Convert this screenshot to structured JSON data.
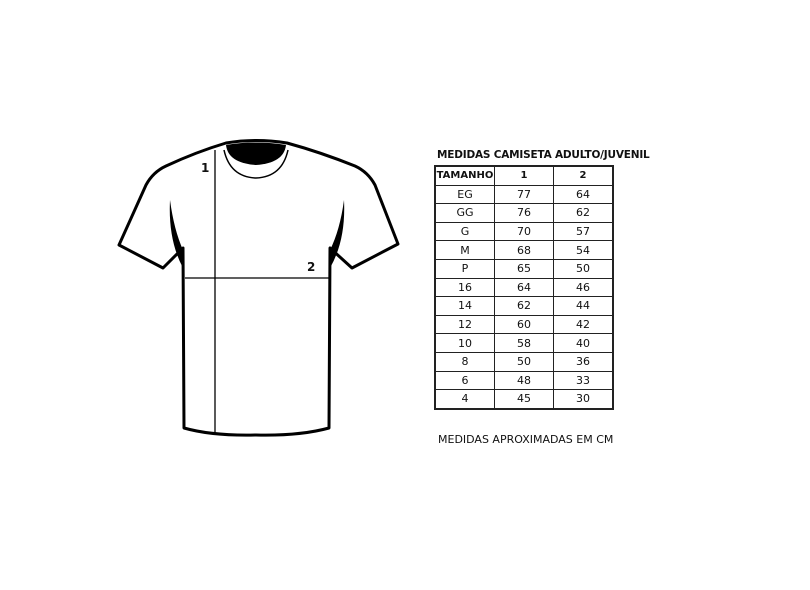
{
  "diagram": {
    "label_1": "1",
    "label_2": "2"
  },
  "table": {
    "title": "MEDIDAS CAMISETA ADULTO/JUVENIL",
    "headers": [
      "TAMANHO",
      "1",
      "2"
    ],
    "rows": [
      [
        "EG",
        "77",
        "64"
      ],
      [
        "GG",
        "76",
        "62"
      ],
      [
        "G",
        "70",
        "57"
      ],
      [
        "M",
        "68",
        "54"
      ],
      [
        "P",
        "65",
        "50"
      ],
      [
        "16",
        "64",
        "46"
      ],
      [
        "14",
        "62",
        "44"
      ],
      [
        "12",
        "60",
        "42"
      ],
      [
        "10",
        "58",
        "40"
      ],
      [
        "8",
        "50",
        "36"
      ],
      [
        "6",
        "48",
        "33"
      ],
      [
        "4",
        "45",
        "30"
      ]
    ]
  },
  "note": "MEDIDAS APROXIMADAS EM CM"
}
